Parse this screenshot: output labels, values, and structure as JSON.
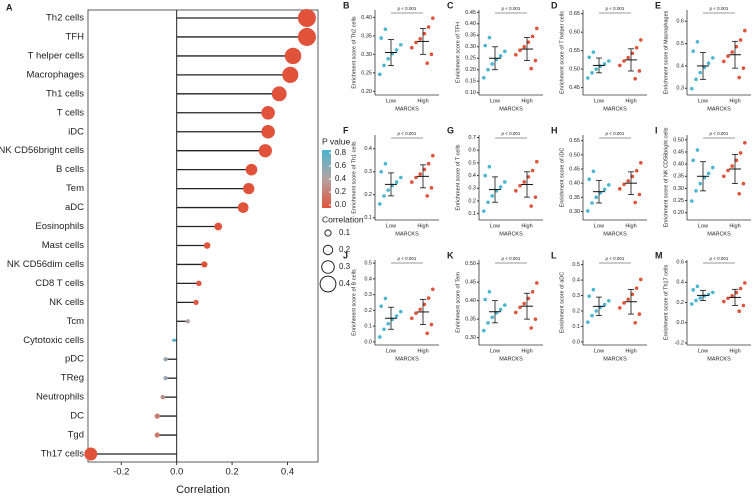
{
  "chart_data": [
    {
      "type": "lollipop",
      "label": "A",
      "categories": [
        "Th2 cells",
        "TFH",
        "T helper cells",
        "Macrophages",
        "Th1 cells",
        "T cells",
        "iDC",
        "NK CD56bright cells",
        "B cells",
        "Tem",
        "aDC",
        "Eosinophils",
        "Mast cells",
        "NK CD56dim cells",
        "CD8 T cells",
        "NK cells",
        "Tcm",
        "Cytotoxic cells",
        "pDC",
        "TReg",
        "Neutrophils",
        "DC",
        "Tgd",
        "Th17 cells"
      ],
      "values": [
        0.47,
        0.47,
        0.42,
        0.41,
        0.37,
        0.33,
        0.33,
        0.32,
        0.27,
        0.26,
        0.24,
        0.15,
        0.11,
        0.1,
        0.08,
        0.07,
        0.04,
        -0.01,
        -0.04,
        -0.04,
        -0.05,
        -0.07,
        -0.07,
        -0.31
      ],
      "pvalues": [
        0,
        0,
        0,
        0,
        0,
        0,
        0,
        0,
        0,
        0,
        0,
        0,
        0,
        0,
        0.02,
        0.03,
        0.4,
        0.8,
        0.5,
        0.5,
        0.3,
        0.2,
        0.2,
        0
      ],
      "xlabel": "Correlation",
      "xlim": [
        -0.32,
        0.51
      ],
      "xticks": [
        -0.2,
        {
          "value": 0,
          "label": "0.0"
        },
        0.2,
        0.4
      ],
      "colors": [
        "#e0533a",
        "#b4a2a2",
        "#4bb6d0"
      ],
      "color_title": "P value",
      "color_ticks": [
        0.8,
        0.6,
        0.4,
        0.2,
        {
          "value": 0,
          "label": "0.0"
        }
      ],
      "size_title": "Correlation",
      "size_ticks": [
        0.1,
        0.2,
        0.3,
        0.4
      ]
    },
    {
      "type": "strip",
      "label": "B",
      "ylabel": "Enrichment score of Th2 cells",
      "xlabel": "MARCKS",
      "annotation": "p < 0.001",
      "categories": [
        "Low",
        "High"
      ],
      "ylim": [
        0.19,
        0.42
      ],
      "yticks": [
        {
          "value": 0.2,
          "label": "0.20"
        },
        {
          "value": 0.25,
          "label": "0.25"
        },
        {
          "value": 0.3,
          "label": "0.30"
        },
        {
          "value": 0.35,
          "label": "0.35"
        },
        {
          "value": 0.4,
          "label": "0.40"
        }
      ],
      "series": [
        {
          "color": "#4bb6d0",
          "mean": 0.305,
          "sd": 0.035,
          "values": [
            0.246,
            0.27,
            0.288,
            0.302,
            0.312,
            0.326,
            0.344,
            0.368
          ]
        },
        {
          "color": "#e0533a",
          "mean": 0.335,
          "sd": 0.035,
          "values": [
            0.276,
            0.3,
            0.318,
            0.332,
            0.342,
            0.356,
            0.374,
            0.398
          ]
        }
      ]
    },
    {
      "type": "strip",
      "label": "C",
      "ylabel": "Enrichment score of TFH",
      "xlabel": "MARCKS",
      "annotation": "p < 0.001",
      "categories": [
        "Low",
        "High"
      ],
      "ylim": [
        0.09,
        0.46
      ],
      "yticks": [
        {
          "value": 0.1,
          "label": "0.10"
        },
        {
          "value": 0.15,
          "label": "0.15"
        },
        {
          "value": 0.2,
          "label": "0.20"
        },
        {
          "value": 0.25,
          "label": "0.25"
        },
        {
          "value": 0.3,
          "label": "0.30"
        },
        {
          "value": 0.35,
          "label": "0.35"
        },
        {
          "value": 0.4,
          "label": "0.40"
        },
        {
          "value": 0.45,
          "label": "0.45"
        }
      ],
      "series": [
        {
          "color": "#4bb6d0",
          "mean": 0.25,
          "sd": 0.05,
          "values": [
            0.165,
            0.2,
            0.225,
            0.245,
            0.26,
            0.28,
            0.305,
            0.34
          ]
        },
        {
          "color": "#e0533a",
          "mean": 0.29,
          "sd": 0.05,
          "values": [
            0.205,
            0.24,
            0.265,
            0.285,
            0.3,
            0.32,
            0.345,
            0.38
          ]
        }
      ]
    },
    {
      "type": "strip",
      "label": "D",
      "ylabel": "Enrichment score of T helper cells",
      "xlabel": "MARCKS",
      "annotation": "p < 0.001",
      "categories": [
        "Low",
        "High"
      ],
      "ylim": [
        0.43,
        0.66
      ],
      "yticks": [
        0.45,
        {
          "value": 0.5,
          "label": "0.50"
        },
        0.55,
        {
          "value": 0.6,
          "label": "0.60"
        },
        0.65
      ],
      "series": [
        {
          "color": "#4bb6d0",
          "mean": 0.51,
          "sd": 0.02,
          "values": [
            0.476,
            0.49,
            0.5,
            0.508,
            0.514,
            0.522,
            0.532,
            0.546
          ]
        },
        {
          "color": "#e0533a",
          "mean": 0.525,
          "sd": 0.03,
          "values": [
            0.474,
            0.495,
            0.51,
            0.522,
            0.531,
            0.543,
            0.558,
            0.579
          ]
        }
      ]
    },
    {
      "type": "strip",
      "label": "E",
      "ylabel": "Enrichment score of Macrophages",
      "xlabel": "MARCKS",
      "annotation": "p < 0.001",
      "categories": [
        "Low",
        "High"
      ],
      "ylim": [
        0.27,
        0.65
      ],
      "yticks": [
        0.3,
        0.4,
        0.5,
        0.6
      ],
      "series": [
        {
          "color": "#4bb6d0",
          "mean": 0.4,
          "sd": 0.06,
          "values": [
            0.298,
            0.34,
            0.37,
            0.394,
            0.412,
            0.436,
            0.466,
            0.508
          ]
        },
        {
          "color": "#e0533a",
          "mean": 0.45,
          "sd": 0.06,
          "values": [
            0.348,
            0.39,
            0.42,
            0.444,
            0.462,
            0.486,
            0.516,
            0.558
          ]
        }
      ]
    },
    {
      "type": "strip",
      "label": "F",
      "ylabel": "Enrichment score of Th1 cells",
      "xlabel": "MARCKS",
      "annotation": "p < 0.001",
      "categories": [
        "Low",
        "High"
      ],
      "ylim": [
        0.09,
        0.46
      ],
      "yticks": [
        0.1,
        0.2,
        0.3,
        0.4
      ],
      "series": [
        {
          "color": "#4bb6d0",
          "mean": 0.245,
          "sd": 0.05,
          "values": [
            0.16,
            0.195,
            0.22,
            0.24,
            0.255,
            0.275,
            0.3,
            0.335
          ]
        },
        {
          "color": "#e0533a",
          "mean": 0.28,
          "sd": 0.05,
          "values": [
            0.195,
            0.23,
            0.255,
            0.275,
            0.29,
            0.31,
            0.335,
            0.37
          ]
        }
      ]
    },
    {
      "type": "strip",
      "label": "G",
      "ylabel": "Enrichment score of T cells",
      "xlabel": "MARCKS",
      "annotation": "p < 0.001",
      "categories": [
        "Low",
        "High"
      ],
      "ylim": [
        0.05,
        0.72
      ],
      "yticks": [
        0.1,
        0.2,
        0.3,
        0.4,
        0.5,
        0.6,
        0.7
      ],
      "series": [
        {
          "color": "#4bb6d0",
          "mean": 0.29,
          "sd": 0.1,
          "values": [
            0.12,
            0.19,
            0.24,
            0.28,
            0.31,
            0.35,
            0.4,
            0.47
          ]
        },
        {
          "color": "#e0533a",
          "mean": 0.33,
          "sd": 0.1,
          "values": [
            0.16,
            0.23,
            0.28,
            0.32,
            0.35,
            0.39,
            0.44,
            0.51
          ]
        }
      ]
    },
    {
      "type": "strip",
      "label": "H",
      "ylabel": "Enrichment score of iDC",
      "xlabel": "MARCKS",
      "annotation": "p < 0.001",
      "categories": [
        "Low",
        "High"
      ],
      "ylim": [
        0.27,
        0.57
      ],
      "yticks": [
        {
          "value": 0.3,
          "label": "0.30"
        },
        0.35,
        {
          "value": 0.4,
          "label": "0.40"
        },
        0.45,
        {
          "value": 0.5,
          "label": "0.50"
        },
        0.55
      ],
      "series": [
        {
          "color": "#4bb6d0",
          "mean": 0.37,
          "sd": 0.04,
          "values": [
            0.302,
            0.33,
            0.35,
            0.366,
            0.378,
            0.394,
            0.414,
            0.442
          ]
        },
        {
          "color": "#e0533a",
          "mean": 0.4,
          "sd": 0.04,
          "values": [
            0.332,
            0.36,
            0.38,
            0.396,
            0.408,
            0.424,
            0.444,
            0.472
          ]
        }
      ]
    },
    {
      "type": "strip",
      "label": "I",
      "ylabel": "Enrichment score of NK CD56bright cells",
      "xlabel": "MARCKS",
      "annotation": "p < 0.001",
      "categories": [
        "Low",
        "High"
      ],
      "ylim": [
        0.17,
        0.52
      ],
      "yticks": [
        {
          "value": 0.2,
          "label": "0.20"
        },
        0.25,
        {
          "value": 0.3,
          "label": "0.30"
        },
        0.35,
        {
          "value": 0.4,
          "label": "0.40"
        },
        0.45,
        {
          "value": 0.5,
          "label": "0.50"
        }
      ],
      "series": [
        {
          "color": "#4bb6d0",
          "mean": 0.35,
          "sd": 0.06,
          "values": [
            0.248,
            0.29,
            0.32,
            0.344,
            0.362,
            0.386,
            0.416,
            0.458
          ]
        },
        {
          "color": "#e0533a",
          "mean": 0.38,
          "sd": 0.06,
          "values": [
            0.278,
            0.32,
            0.35,
            0.374,
            0.392,
            0.416,
            0.446,
            0.488
          ]
        }
      ]
    },
    {
      "type": "strip",
      "label": "J",
      "ylabel": "Enrichment score of B cells",
      "xlabel": "MARCKS",
      "annotation": "p < 0.001",
      "categories": [
        "Low",
        "High"
      ],
      "ylim": [
        -0.02,
        0.52
      ],
      "yticks": [
        {
          "value": 0,
          "label": "0.0"
        },
        0.1,
        0.2,
        0.3,
        0.4,
        0.5
      ],
      "series": [
        {
          "color": "#4bb6d0",
          "mean": 0.15,
          "sd": 0.07,
          "values": [
            0.031,
            0.08,
            0.115,
            0.143,
            0.164,
            0.192,
            0.227,
            0.276
          ]
        },
        {
          "color": "#e0533a",
          "mean": 0.19,
          "sd": 0.08,
          "values": [
            0.054,
            0.11,
            0.15,
            0.182,
            0.206,
            0.238,
            0.278,
            0.334
          ]
        }
      ]
    },
    {
      "type": "strip",
      "label": "K",
      "ylabel": "Enrichment score of Tem",
      "xlabel": "MARCKS",
      "annotation": "p < 0.001",
      "categories": [
        "Low",
        "High"
      ],
      "ylim": [
        0.28,
        0.51
      ],
      "yticks": [
        {
          "value": 0.3,
          "label": "0.30"
        },
        0.35,
        {
          "value": 0.4,
          "label": "0.40"
        },
        0.45,
        {
          "value": 0.5,
          "label": "0.50"
        }
      ],
      "series": [
        {
          "color": "#4bb6d0",
          "mean": 0.37,
          "sd": 0.03,
          "values": [
            0.319,
            0.34,
            0.355,
            0.367,
            0.376,
            0.388,
            0.403,
            0.424
          ]
        },
        {
          "color": "#e0533a",
          "mean": 0.385,
          "sd": 0.035,
          "values": [
            0.326,
            0.35,
            0.368,
            0.382,
            0.392,
            0.406,
            0.424,
            0.448
          ]
        }
      ]
    },
    {
      "type": "strip",
      "label": "L",
      "ylabel": "Enrichment score of aDC",
      "xlabel": "MARCKS",
      "annotation": "p < 0.001",
      "categories": [
        "Low",
        "High"
      ],
      "ylim": [
        -0.02,
        0.53
      ],
      "yticks": [
        {
          "value": 0,
          "label": "0.0"
        },
        0.1,
        0.2,
        0.3,
        0.4,
        0.5
      ],
      "series": [
        {
          "color": "#4bb6d0",
          "mean": 0.23,
          "sd": 0.06,
          "values": [
            0.128,
            0.17,
            0.2,
            0.224,
            0.242,
            0.266,
            0.296,
            0.338
          ]
        },
        {
          "color": "#e0533a",
          "mean": 0.26,
          "sd": 0.08,
          "values": [
            0.124,
            0.18,
            0.22,
            0.252,
            0.276,
            0.308,
            0.348,
            0.404
          ]
        }
      ]
    },
    {
      "type": "strip",
      "label": "M",
      "ylabel": "Enrichment score of Th17 cells",
      "xlabel": "MARCKS",
      "annotation": "p < 0.001",
      "categories": [
        "Low",
        "High"
      ],
      "ylim": [
        -0.22,
        0.62
      ],
      "yticks": [
        -0.2,
        {
          "value": 0,
          "label": "0.0"
        },
        0.2,
        0.4,
        0.6
      ],
      "series": [
        {
          "color": "#4bb6d0",
          "mean": 0.27,
          "sd": 0.05,
          "values": [
            0.185,
            0.22,
            0.245,
            0.265,
            0.28,
            0.3,
            0.325,
            0.36
          ]
        },
        {
          "color": "#e0533a",
          "mean": 0.25,
          "sd": 0.08,
          "values": [
            0.114,
            0.17,
            0.21,
            0.242,
            0.266,
            0.298,
            0.338,
            0.394
          ]
        }
      ]
    }
  ]
}
